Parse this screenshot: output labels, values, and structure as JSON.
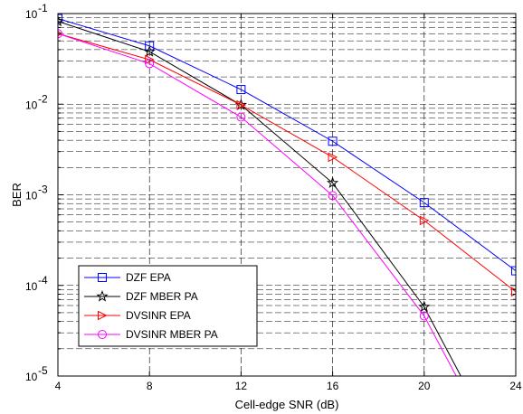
{
  "chart_data": {
    "type": "line",
    "title": "",
    "xlabel": "Cell-edge SNR (dB)",
    "ylabel": "BER",
    "xlim": [
      4,
      24
    ],
    "ylim": [
      1e-05,
      0.1
    ],
    "yscale": "log",
    "grid": true,
    "legend_position": "bottom-left",
    "x_ticks": [
      "4",
      "8",
      "12",
      "16",
      "20",
      "24"
    ],
    "y_ticks": [
      {
        "base": "10",
        "exp": "-5"
      },
      {
        "base": "10",
        "exp": "-4"
      },
      {
        "base": "10",
        "exp": "-3"
      },
      {
        "base": "10",
        "exp": "-2"
      },
      {
        "base": "10",
        "exp": "-1"
      }
    ],
    "series": [
      {
        "name": "DZF EPA",
        "color": "#0000ff",
        "marker": "square",
        "x": [
          4,
          8,
          12,
          16,
          20,
          24
        ],
        "y": [
          0.088,
          0.044,
          0.0145,
          0.0039,
          0.00082,
          0.000145
        ]
      },
      {
        "name": "DZF MBER PA",
        "color": "#000000",
        "marker": "star",
        "x": [
          4,
          8,
          12,
          16,
          20,
          21.6
        ],
        "y": [
          0.082,
          0.038,
          0.0098,
          0.00135,
          5.8e-05,
          1e-05
        ]
      },
      {
        "name": "DVSINR EPA",
        "color": "#ff0000",
        "marker": "triangle-right",
        "x": [
          4,
          8,
          12,
          16,
          20,
          24
        ],
        "y": [
          0.06,
          0.031,
          0.0098,
          0.0026,
          0.00052,
          8.5e-05
        ]
      },
      {
        "name": "DVSINR MBER PA",
        "color": "#ff00ff",
        "marker": "circle",
        "x": [
          4,
          8,
          12,
          16,
          20,
          21.4
        ],
        "y": [
          0.06,
          0.028,
          0.0072,
          0.00098,
          4.6e-05,
          1e-05
        ]
      }
    ]
  }
}
